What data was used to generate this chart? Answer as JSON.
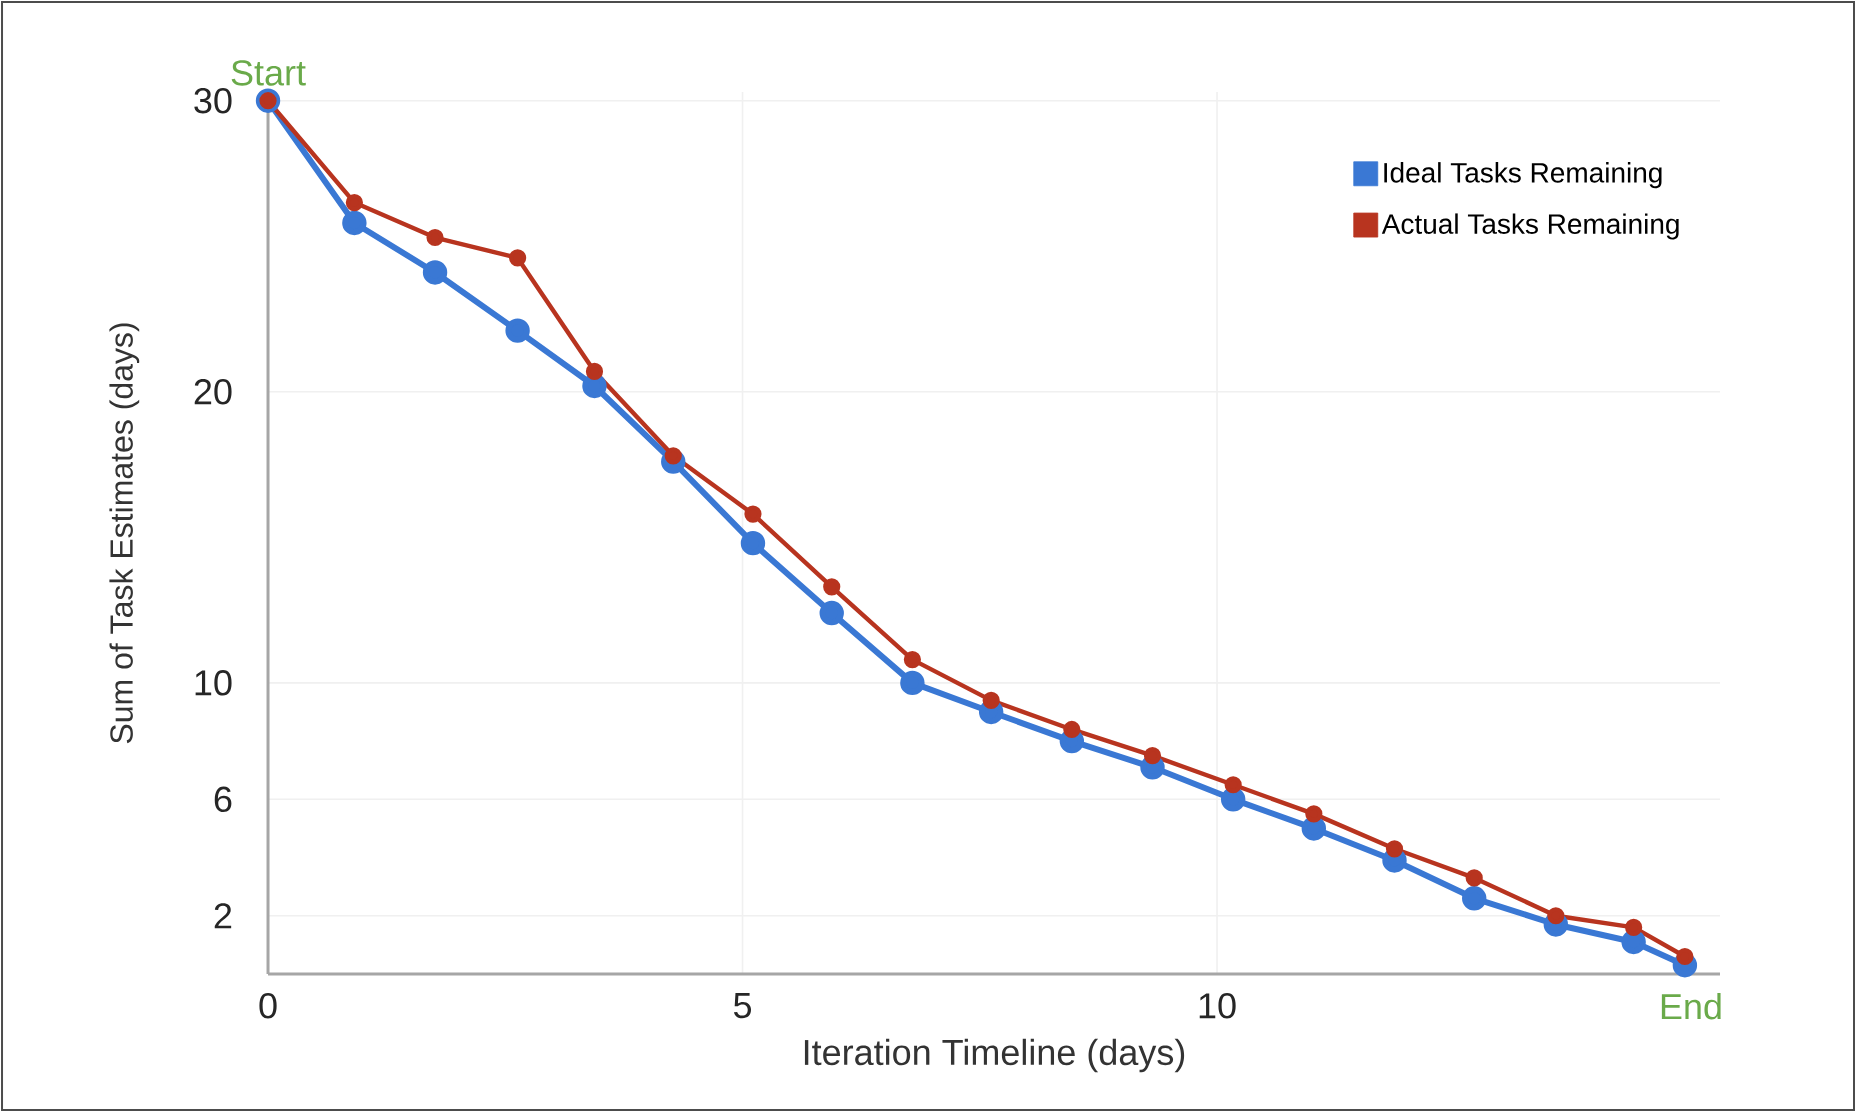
{
  "chart_data": {
    "type": "line",
    "xlabel": "Iteration Timeline (days)",
    "ylabel": "Sum of Task Estimates (days)",
    "x": [
      0,
      0.91,
      1.76,
      2.63,
      3.44,
      4.27,
      5.11,
      5.94,
      6.79,
      7.62,
      8.47,
      9.32,
      10.17,
      11.02,
      11.87,
      12.71,
      13.57,
      14.39,
      14.93
    ],
    "series": [
      {
        "name": "Ideal Tasks Remaining",
        "color": "#3a78d4",
        "values": [
          30,
          25.8,
          24.1,
          22.1,
          20.2,
          17.6,
          14.8,
          12.4,
          10.0,
          9.0,
          8.0,
          7.1,
          6.0,
          5.0,
          3.9,
          2.6,
          1.7,
          1.1,
          0.3
        ]
      },
      {
        "name": "Actual Tasks Remaining",
        "color": "#b8341f",
        "values": [
          30,
          26.5,
          25.3,
          24.6,
          20.7,
          17.8,
          15.8,
          13.3,
          10.8,
          9.4,
          8.4,
          7.5,
          6.5,
          5.5,
          4.3,
          3.3,
          2.0,
          1.6,
          0.6
        ]
      }
    ],
    "xlim": [
      0,
      15.3
    ],
    "ylim": [
      0,
      30.3
    ],
    "xticks": [
      0,
      5,
      10
    ],
    "yticks": [
      30,
      20,
      10,
      6,
      2
    ],
    "annotations": [
      {
        "text": "Start",
        "x": 0,
        "y": 30
      },
      "End"
    ],
    "grid": true,
    "legend": "top right",
    "marker": "circle",
    "line_style": "solid"
  }
}
